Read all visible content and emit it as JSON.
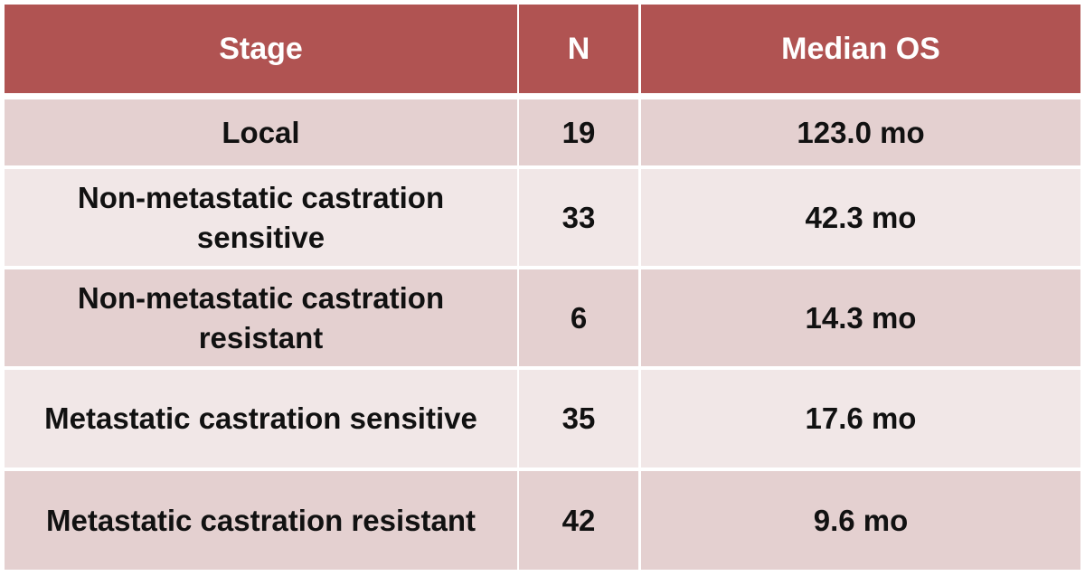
{
  "table": {
    "header": [
      "Stage",
      "N",
      "Median OS"
    ],
    "rows": [
      [
        "Local",
        19,
        "123.0 mo"
      ],
      [
        "Non-metastatic castration sensitive",
        33,
        "42.3 mo"
      ],
      [
        "Non-metastatic castration resistant",
        6,
        "14.3 mo"
      ],
      [
        "Metastatic castration sensitive",
        35,
        "17.6 mo"
      ],
      [
        "Metastatic castration resistant",
        42,
        "9.6 mo"
      ]
    ]
  }
}
